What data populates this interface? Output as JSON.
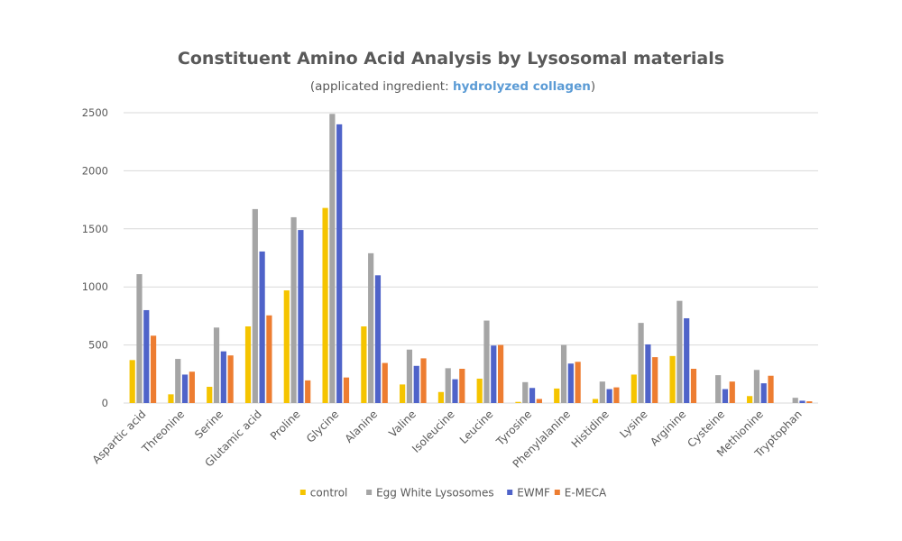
{
  "chart_data": {
    "type": "bar",
    "title": "Constituent Amino Acid Analysis by Lysosomal materials",
    "subtitle_prefix": "(applicated ingredient: ",
    "subtitle_highlight": "hydrolyzed collagen",
    "subtitle_suffix": ")",
    "xlabel": "",
    "ylabel": "",
    "ylim": [
      0,
      2500
    ],
    "yticks": [
      0,
      500,
      1000,
      1500,
      2000,
      2500
    ],
    "grid": true,
    "legend_position": "bottom",
    "categories": [
      "Aspartic acid",
      "Threonine",
      "Serine",
      "Glutamic acid",
      "Proline",
      "Glycine",
      "Alanine",
      "Valine",
      "Isoleucine",
      "Leucine",
      "Tyrosine",
      "Phenylalanine",
      "Histidine",
      "Lysine",
      "Arginine",
      "Cysteine",
      "Methionine",
      "Tryptophan"
    ],
    "series": [
      {
        "name": "control",
        "color": "#f5c400",
        "values": [
          370,
          75,
          140,
          660,
          970,
          1680,
          660,
          160,
          95,
          210,
          10,
          125,
          35,
          245,
          405,
          0,
          60,
          0
        ]
      },
      {
        "name": "Egg White Lysosomes",
        "color": "#a5a5a5",
        "values": [
          1110,
          380,
          650,
          1670,
          1600,
          2490,
          1290,
          460,
          300,
          710,
          180,
          500,
          185,
          690,
          880,
          240,
          285,
          45
        ]
      },
      {
        "name": "EWMF",
        "color": "#4f63c9",
        "values": [
          800,
          245,
          445,
          1305,
          1490,
          2400,
          1100,
          320,
          205,
          495,
          130,
          340,
          120,
          505,
          730,
          120,
          170,
          20
        ]
      },
      {
        "name": "E-MECA",
        "color": "#ed7d31",
        "values": [
          580,
          270,
          410,
          755,
          195,
          220,
          345,
          385,
          295,
          500,
          35,
          355,
          135,
          395,
          295,
          185,
          235,
          15
        ]
      }
    ]
  }
}
